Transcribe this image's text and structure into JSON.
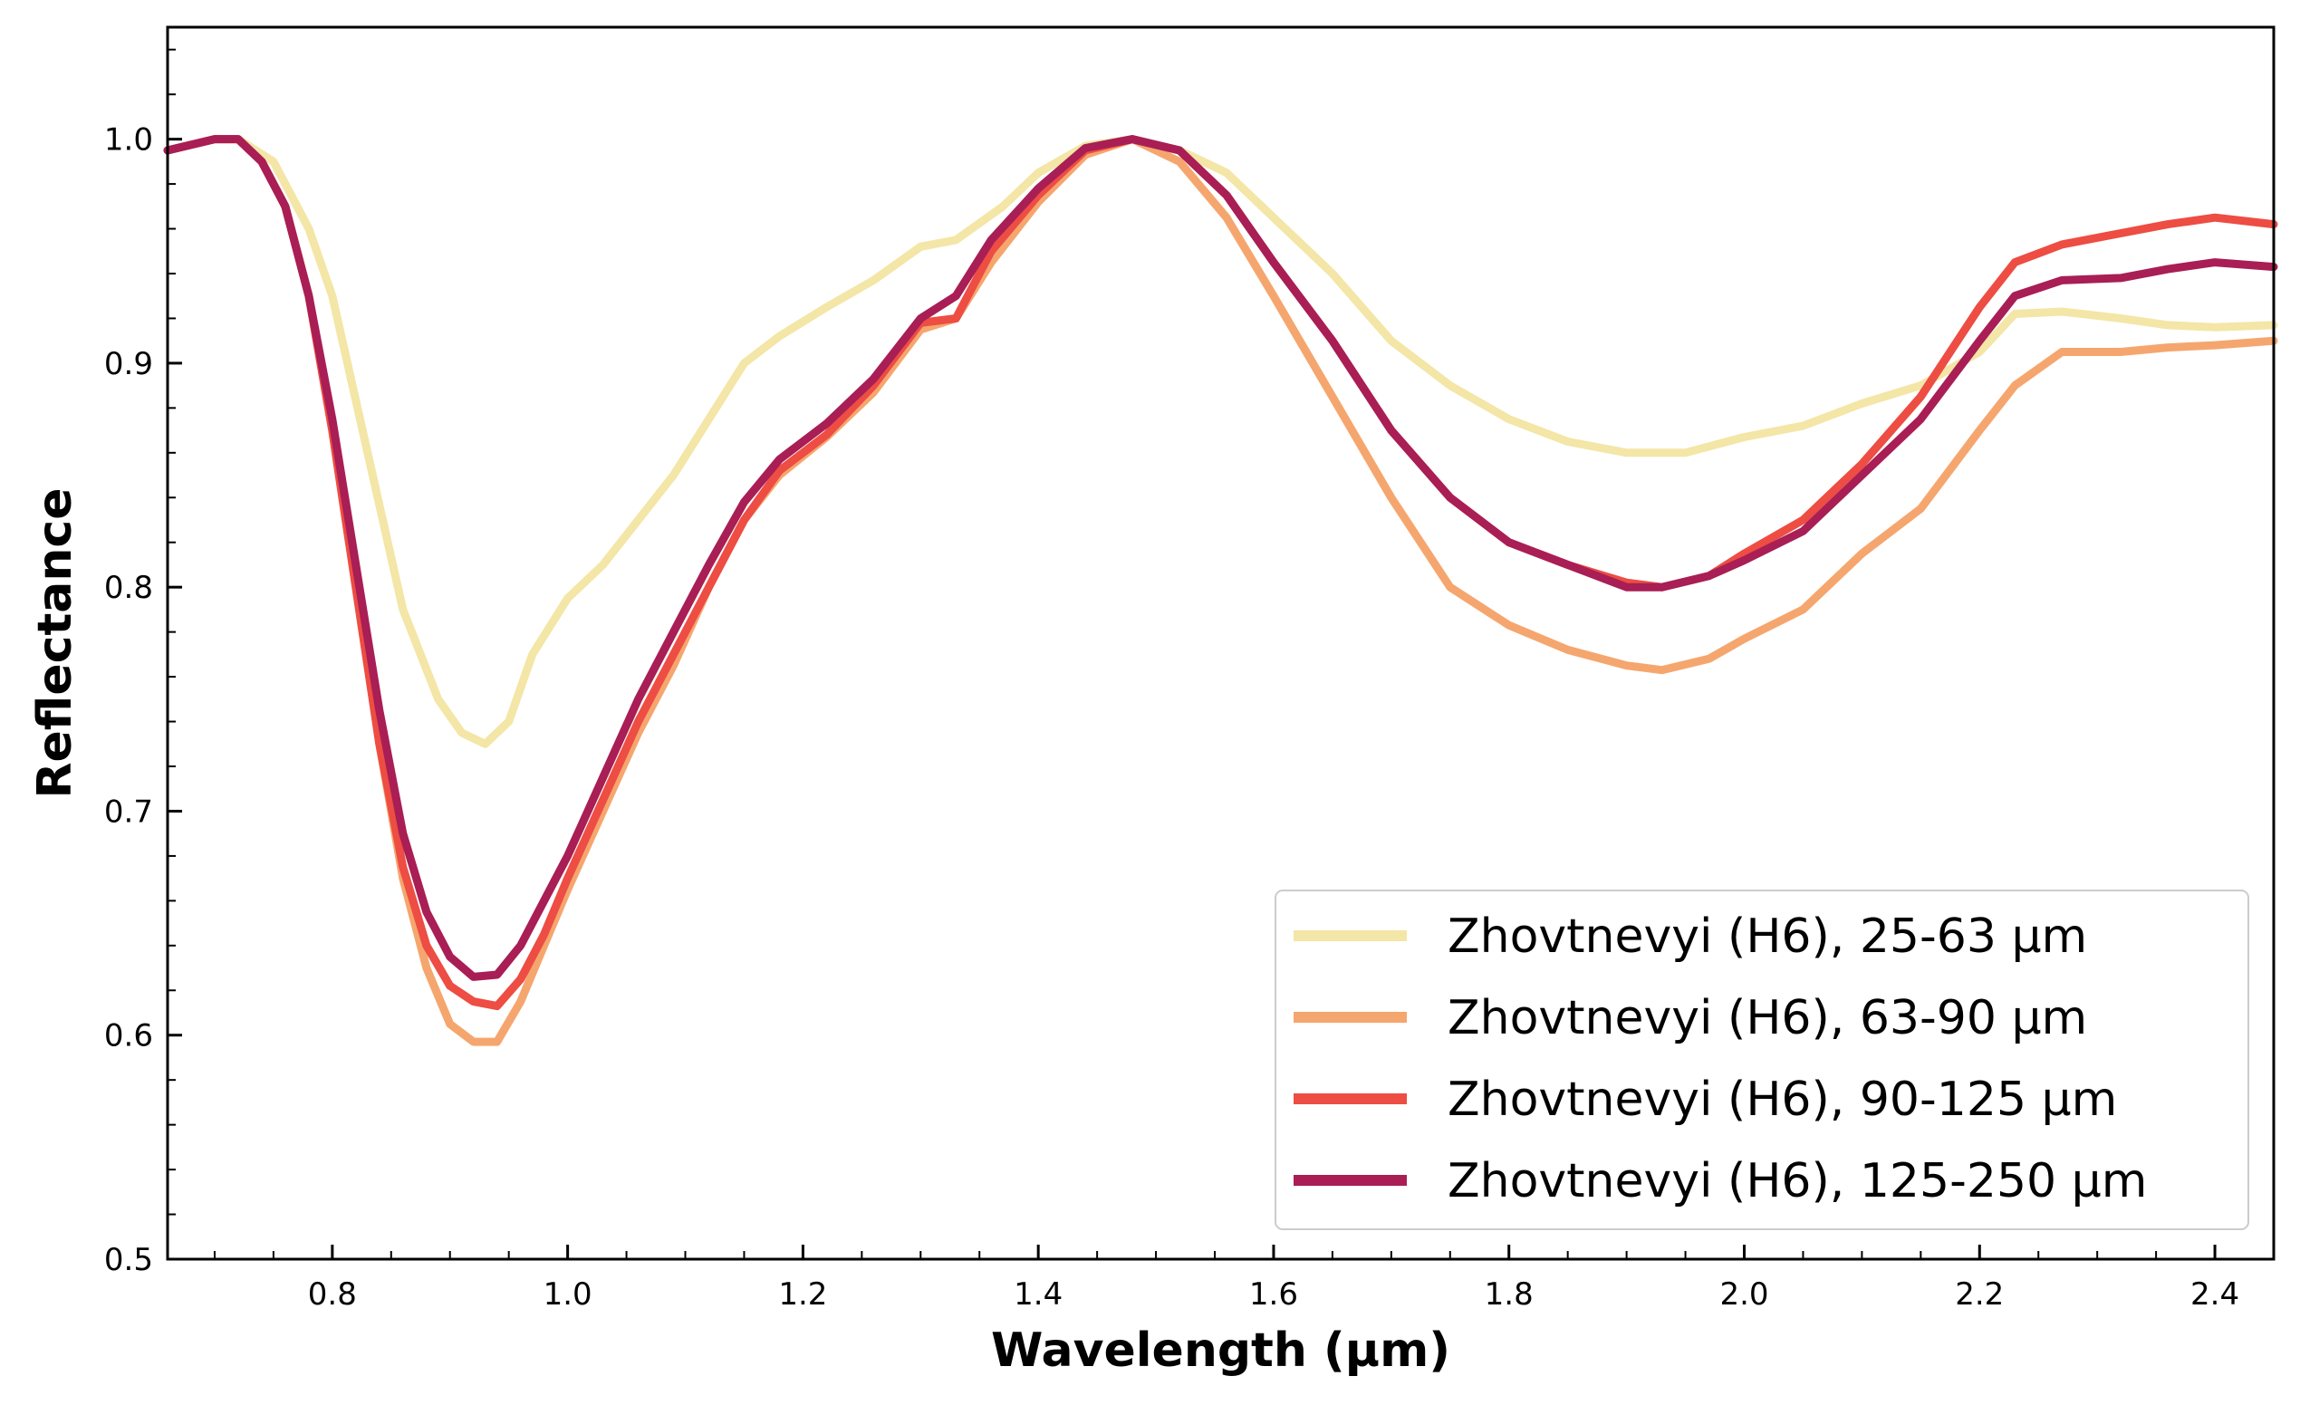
{
  "chart_data": {
    "type": "line",
    "xlabel": "Wavelength (μm)",
    "ylabel": "Reflectance",
    "xlim": [
      0.66,
      2.45
    ],
    "ylim": [
      0.5,
      1.05
    ],
    "x_ticks": [
      0.8,
      1.0,
      1.2,
      1.4,
      1.6,
      1.8,
      2.0,
      2.2,
      2.4
    ],
    "x_tick_labels": [
      "0.8",
      "1.0",
      "1.2",
      "1.4",
      "1.6",
      "1.8",
      "2.0",
      "2.2",
      "2.4"
    ],
    "y_ticks": [
      0.5,
      0.6,
      0.7,
      0.8,
      0.9,
      1.0
    ],
    "y_tick_labels": [
      "0.5",
      "0.6",
      "0.7",
      "0.8",
      "0.9",
      "1.0"
    ],
    "grid": false,
    "legend_position": "lower-right",
    "series": [
      {
        "name": "Zhovtnevyi (H6), 25-63 μm",
        "color": "#f3e6a6",
        "points": [
          [
            0.66,
            0.995
          ],
          [
            0.7,
            1.0
          ],
          [
            0.72,
            1.0
          ],
          [
            0.75,
            0.99
          ],
          [
            0.78,
            0.96
          ],
          [
            0.8,
            0.93
          ],
          [
            0.83,
            0.86
          ],
          [
            0.86,
            0.79
          ],
          [
            0.89,
            0.75
          ],
          [
            0.91,
            0.735
          ],
          [
            0.93,
            0.73
          ],
          [
            0.95,
            0.74
          ],
          [
            0.97,
            0.77
          ],
          [
            1.0,
            0.795
          ],
          [
            1.03,
            0.81
          ],
          [
            1.06,
            0.83
          ],
          [
            1.09,
            0.85
          ],
          [
            1.12,
            0.875
          ],
          [
            1.15,
            0.9
          ],
          [
            1.18,
            0.912
          ],
          [
            1.22,
            0.925
          ],
          [
            1.26,
            0.937
          ],
          [
            1.3,
            0.952
          ],
          [
            1.33,
            0.955
          ],
          [
            1.37,
            0.97
          ],
          [
            1.4,
            0.985
          ],
          [
            1.44,
            0.997
          ],
          [
            1.48,
            1.0
          ],
          [
            1.52,
            0.995
          ],
          [
            1.56,
            0.985
          ],
          [
            1.6,
            0.965
          ],
          [
            1.65,
            0.94
          ],
          [
            1.7,
            0.91
          ],
          [
            1.75,
            0.89
          ],
          [
            1.8,
            0.875
          ],
          [
            1.85,
            0.865
          ],
          [
            1.9,
            0.86
          ],
          [
            1.95,
            0.86
          ],
          [
            2.0,
            0.867
          ],
          [
            2.05,
            0.872
          ],
          [
            2.1,
            0.882
          ],
          [
            2.15,
            0.89
          ],
          [
            2.2,
            0.905
          ],
          [
            2.23,
            0.922
          ],
          [
            2.27,
            0.923
          ],
          [
            2.32,
            0.92
          ],
          [
            2.36,
            0.917
          ],
          [
            2.4,
            0.916
          ],
          [
            2.45,
            0.917
          ]
        ]
      },
      {
        "name": "Zhovtnevyi (H6), 63-90 μm",
        "color": "#f5a66e",
        "points": [
          [
            0.66,
            0.995
          ],
          [
            0.7,
            1.0
          ],
          [
            0.72,
            1.0
          ],
          [
            0.74,
            0.99
          ],
          [
            0.76,
            0.97
          ],
          [
            0.78,
            0.93
          ],
          [
            0.8,
            0.87
          ],
          [
            0.82,
            0.8
          ],
          [
            0.84,
            0.73
          ],
          [
            0.86,
            0.67
          ],
          [
            0.88,
            0.63
          ],
          [
            0.9,
            0.605
          ],
          [
            0.92,
            0.597
          ],
          [
            0.94,
            0.597
          ],
          [
            0.96,
            0.615
          ],
          [
            0.98,
            0.64
          ],
          [
            1.0,
            0.665
          ],
          [
            1.03,
            0.7
          ],
          [
            1.06,
            0.735
          ],
          [
            1.09,
            0.765
          ],
          [
            1.12,
            0.8
          ],
          [
            1.15,
            0.83
          ],
          [
            1.18,
            0.85
          ],
          [
            1.22,
            0.867
          ],
          [
            1.26,
            0.887
          ],
          [
            1.3,
            0.915
          ],
          [
            1.33,
            0.92
          ],
          [
            1.36,
            0.945
          ],
          [
            1.4,
            0.972
          ],
          [
            1.44,
            0.993
          ],
          [
            1.48,
            1.0
          ],
          [
            1.52,
            0.99
          ],
          [
            1.56,
            0.965
          ],
          [
            1.6,
            0.93
          ],
          [
            1.65,
            0.885
          ],
          [
            1.7,
            0.84
          ],
          [
            1.75,
            0.8
          ],
          [
            1.8,
            0.783
          ],
          [
            1.85,
            0.772
          ],
          [
            1.9,
            0.765
          ],
          [
            1.93,
            0.763
          ],
          [
            1.97,
            0.768
          ],
          [
            2.0,
            0.777
          ],
          [
            2.05,
            0.79
          ],
          [
            2.1,
            0.815
          ],
          [
            2.15,
            0.835
          ],
          [
            2.2,
            0.87
          ],
          [
            2.23,
            0.89
          ],
          [
            2.27,
            0.905
          ],
          [
            2.32,
            0.905
          ],
          [
            2.36,
            0.907
          ],
          [
            2.4,
            0.908
          ],
          [
            2.45,
            0.91
          ]
        ]
      },
      {
        "name": "Zhovtnevyi (H6), 90-125 μm",
        "color": "#ed4d43",
        "points": [
          [
            0.66,
            0.995
          ],
          [
            0.7,
            1.0
          ],
          [
            0.72,
            1.0
          ],
          [
            0.74,
            0.99
          ],
          [
            0.76,
            0.97
          ],
          [
            0.78,
            0.93
          ],
          [
            0.8,
            0.87
          ],
          [
            0.82,
            0.8
          ],
          [
            0.84,
            0.73
          ],
          [
            0.86,
            0.675
          ],
          [
            0.88,
            0.64
          ],
          [
            0.9,
            0.622
          ],
          [
            0.92,
            0.615
          ],
          [
            0.94,
            0.613
          ],
          [
            0.96,
            0.625
          ],
          [
            0.98,
            0.645
          ],
          [
            1.0,
            0.67
          ],
          [
            1.03,
            0.705
          ],
          [
            1.06,
            0.74
          ],
          [
            1.09,
            0.77
          ],
          [
            1.12,
            0.8
          ],
          [
            1.15,
            0.83
          ],
          [
            1.18,
            0.852
          ],
          [
            1.22,
            0.868
          ],
          [
            1.26,
            0.89
          ],
          [
            1.3,
            0.918
          ],
          [
            1.33,
            0.92
          ],
          [
            1.36,
            0.95
          ],
          [
            1.4,
            0.975
          ],
          [
            1.44,
            0.995
          ],
          [
            1.48,
            1.0
          ],
          [
            1.52,
            0.995
          ],
          [
            1.56,
            0.975
          ],
          [
            1.6,
            0.945
          ],
          [
            1.65,
            0.91
          ],
          [
            1.7,
            0.87
          ],
          [
            1.75,
            0.84
          ],
          [
            1.8,
            0.82
          ],
          [
            1.85,
            0.81
          ],
          [
            1.9,
            0.802
          ],
          [
            1.93,
            0.8
          ],
          [
            1.97,
            0.805
          ],
          [
            2.0,
            0.815
          ],
          [
            2.05,
            0.83
          ],
          [
            2.1,
            0.855
          ],
          [
            2.15,
            0.885
          ],
          [
            2.2,
            0.925
          ],
          [
            2.23,
            0.945
          ],
          [
            2.27,
            0.953
          ],
          [
            2.32,
            0.958
          ],
          [
            2.36,
            0.962
          ],
          [
            2.4,
            0.965
          ],
          [
            2.45,
            0.962
          ]
        ]
      },
      {
        "name": "Zhovtnevyi (H6), 125-250 μm",
        "color": "#a81e55",
        "points": [
          [
            0.66,
            0.995
          ],
          [
            0.7,
            1.0
          ],
          [
            0.72,
            1.0
          ],
          [
            0.74,
            0.99
          ],
          [
            0.76,
            0.97
          ],
          [
            0.78,
            0.93
          ],
          [
            0.8,
            0.875
          ],
          [
            0.82,
            0.81
          ],
          [
            0.84,
            0.745
          ],
          [
            0.86,
            0.69
          ],
          [
            0.88,
            0.655
          ],
          [
            0.9,
            0.635
          ],
          [
            0.92,
            0.626
          ],
          [
            0.94,
            0.627
          ],
          [
            0.96,
            0.64
          ],
          [
            0.98,
            0.66
          ],
          [
            1.0,
            0.68
          ],
          [
            1.03,
            0.715
          ],
          [
            1.06,
            0.75
          ],
          [
            1.09,
            0.78
          ],
          [
            1.12,
            0.81
          ],
          [
            1.15,
            0.838
          ],
          [
            1.18,
            0.857
          ],
          [
            1.22,
            0.873
          ],
          [
            1.26,
            0.893
          ],
          [
            1.3,
            0.92
          ],
          [
            1.33,
            0.93
          ],
          [
            1.36,
            0.955
          ],
          [
            1.4,
            0.978
          ],
          [
            1.44,
            0.996
          ],
          [
            1.48,
            1.0
          ],
          [
            1.52,
            0.995
          ],
          [
            1.56,
            0.975
          ],
          [
            1.6,
            0.945
          ],
          [
            1.65,
            0.91
          ],
          [
            1.7,
            0.87
          ],
          [
            1.75,
            0.84
          ],
          [
            1.8,
            0.82
          ],
          [
            1.85,
            0.81
          ],
          [
            1.9,
            0.8
          ],
          [
            1.93,
            0.8
          ],
          [
            1.97,
            0.805
          ],
          [
            2.0,
            0.812
          ],
          [
            2.05,
            0.825
          ],
          [
            2.1,
            0.85
          ],
          [
            2.15,
            0.875
          ],
          [
            2.2,
            0.91
          ],
          [
            2.23,
            0.93
          ],
          [
            2.27,
            0.937
          ],
          [
            2.32,
            0.938
          ],
          [
            2.36,
            0.942
          ],
          [
            2.4,
            0.945
          ],
          [
            2.45,
            0.943
          ]
        ]
      }
    ]
  }
}
